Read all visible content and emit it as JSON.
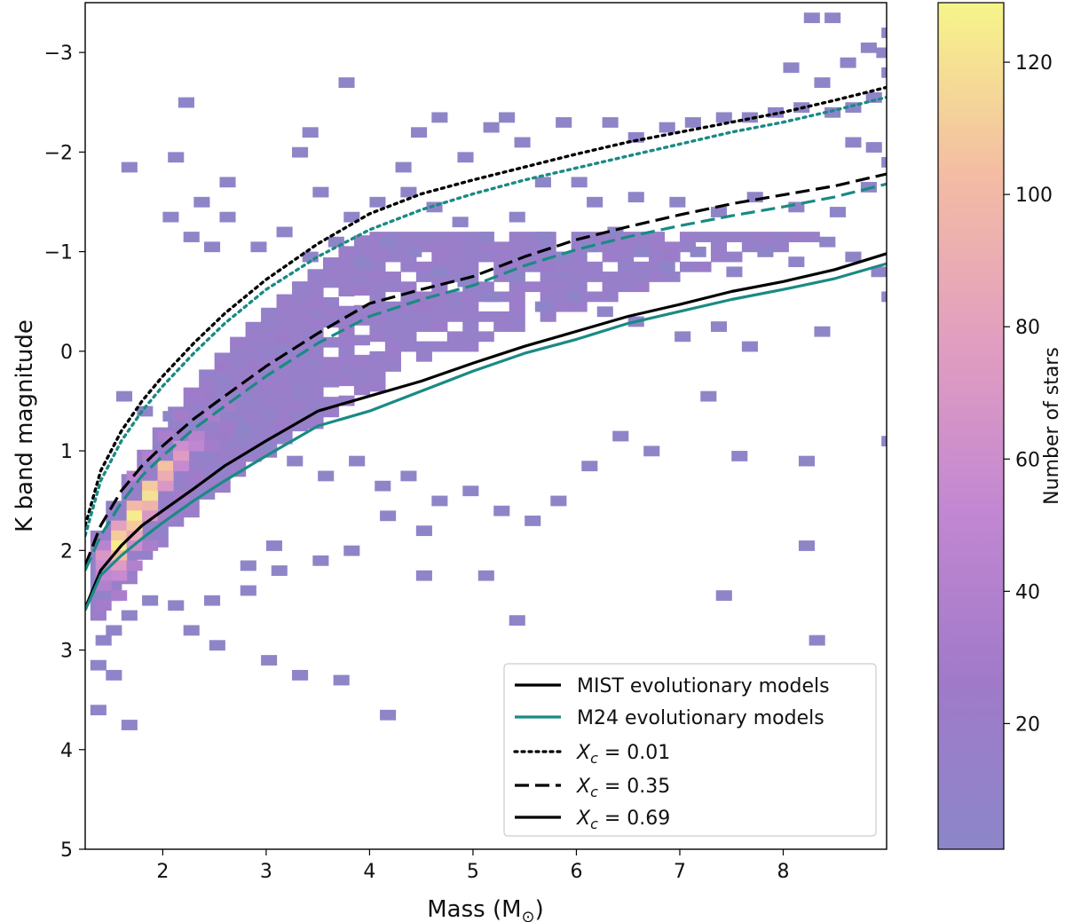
{
  "chart_data": {
    "type": "heatmap",
    "xlabel": "Mass (M",
    "xlabel_sub": "⊙",
    "xlabel_close": ")",
    "ylabel": "K band magnitude",
    "xlim": [
      1.25,
      9.0
    ],
    "ylim": [
      5.0,
      -3.5
    ],
    "y_inverted": true,
    "x_ticks": [
      2,
      3,
      4,
      5,
      6,
      7,
      8
    ],
    "x_tick_labels": [
      "2",
      "3",
      "4",
      "5",
      "6",
      "7",
      "8"
    ],
    "y_ticks": [
      -3,
      -2,
      -1,
      0,
      1,
      2,
      3,
      4,
      5
    ],
    "y_tick_labels": [
      "−3",
      "−2",
      "−1",
      "0",
      "1",
      "2",
      "3",
      "4",
      "5"
    ],
    "grid": false,
    "colorbar": {
      "label": "Number of stars",
      "range": [
        1,
        129
      ],
      "ticks": [
        20,
        40,
        60,
        80,
        100,
        120
      ],
      "tick_labels": [
        "20",
        "40",
        "60",
        "80",
        "100",
        "120"
      ],
      "colors": [
        "#8c86c9",
        "#a07ac9",
        "#c287d2",
        "#e29ec0",
        "#f4bda3",
        "#f6f58a"
      ]
    },
    "heatmap_bins": {
      "x_step": 0.15,
      "y_step": 0.1,
      "low_count_bins": [
        [
          8.2,
          -3.4
        ],
        [
          8.4,
          -3.4
        ],
        [
          8.95,
          -3.25
        ],
        [
          8.9,
          -3.05
        ],
        [
          8.75,
          -3.1
        ],
        [
          8.55,
          -2.95
        ],
        [
          8.0,
          -2.9
        ],
        [
          8.3,
          -2.75
        ],
        [
          8.95,
          -2.85
        ],
        [
          8.8,
          -2.6
        ],
        [
          8.6,
          -2.5
        ],
        [
          8.4,
          -2.45
        ],
        [
          8.1,
          -2.5
        ],
        [
          7.85,
          -2.45
        ],
        [
          7.6,
          -2.4
        ],
        [
          7.35,
          -2.4
        ],
        [
          7.05,
          -2.35
        ],
        [
          6.8,
          -2.3
        ],
        [
          6.5,
          -2.2
        ],
        [
          6.25,
          -2.35
        ],
        [
          5.8,
          -2.35
        ],
        [
          5.25,
          -2.4
        ],
        [
          5.1,
          -2.3
        ],
        [
          4.6,
          -2.4
        ],
        [
          4.4,
          -2.25
        ],
        [
          3.7,
          -2.75
        ],
        [
          3.35,
          -2.25
        ],
        [
          2.15,
          -2.55
        ],
        [
          2.05,
          -2.0
        ],
        [
          1.6,
          -1.9
        ],
        [
          3.25,
          -2.05
        ],
        [
          4.25,
          -1.9
        ],
        [
          4.85,
          -2.0
        ],
        [
          5.4,
          -2.15
        ],
        [
          5.6,
          -1.75
        ],
        [
          5.95,
          -1.75
        ],
        [
          6.1,
          -1.55
        ],
        [
          6.5,
          -1.6
        ],
        [
          6.9,
          -1.55
        ],
        [
          7.3,
          -1.45
        ],
        [
          7.65,
          -1.6
        ],
        [
          8.05,
          -1.5
        ],
        [
          8.45,
          -1.45
        ],
        [
          8.75,
          -1.7
        ],
        [
          8.95,
          -1.95
        ],
        [
          8.8,
          -2.1
        ],
        [
          8.6,
          -2.15
        ],
        [
          2.3,
          -1.55
        ],
        [
          2.55,
          -1.75
        ],
        [
          3.45,
          -1.65
        ],
        [
          3.75,
          -1.4
        ],
        [
          4.0,
          -1.55
        ],
        [
          4.3,
          -1.65
        ],
        [
          4.55,
          -1.5
        ],
        [
          4.8,
          -1.35
        ],
        [
          5.05,
          -1.2
        ],
        [
          5.35,
          -1.4
        ],
        [
          5.6,
          -1.2
        ],
        [
          5.8,
          -1.0
        ],
        [
          6.05,
          -1.1
        ],
        [
          6.3,
          -1.25
        ],
        [
          6.55,
          -1.05
        ],
        [
          6.8,
          -0.9
        ],
        [
          7.1,
          -1.05
        ],
        [
          7.45,
          -0.85
        ],
        [
          7.75,
          -1.05
        ],
        [
          8.05,
          -0.95
        ],
        [
          8.35,
          -1.15
        ],
        [
          8.6,
          -1.0
        ],
        [
          8.85,
          -0.85
        ],
        [
          8.95,
          -0.6
        ],
        [
          2.0,
          -1.4
        ],
        [
          2.2,
          -1.2
        ],
        [
          2.4,
          -1.1
        ],
        [
          2.55,
          -1.4
        ],
        [
          2.85,
          -1.1
        ],
        [
          3.1,
          -1.25
        ],
        [
          3.35,
          -1.0
        ],
        [
          3.6,
          -1.15
        ],
        [
          3.85,
          -0.95
        ],
        [
          4.1,
          -1.15
        ],
        [
          4.35,
          -1.05
        ],
        [
          4.6,
          -0.85
        ],
        [
          4.85,
          -0.75
        ],
        [
          5.1,
          -0.6
        ],
        [
          5.35,
          -0.8
        ],
        [
          5.6,
          -0.5
        ],
        [
          5.9,
          -0.6
        ],
        [
          6.2,
          -0.45
        ],
        [
          6.5,
          -0.35
        ],
        [
          6.95,
          -0.2
        ],
        [
          7.3,
          -0.3
        ],
        [
          7.6,
          -0.1
        ],
        [
          8.3,
          -0.25
        ],
        [
          1.55,
          0.4
        ],
        [
          1.75,
          0.55
        ],
        [
          2.0,
          0.6
        ],
        [
          2.2,
          0.7
        ],
        [
          2.45,
          0.55
        ],
        [
          2.7,
          0.75
        ],
        [
          2.95,
          0.9
        ],
        [
          3.2,
          1.05
        ],
        [
          3.5,
          1.2
        ],
        [
          3.8,
          1.05
        ],
        [
          4.05,
          1.3
        ],
        [
          4.3,
          1.2
        ],
        [
          4.6,
          1.45
        ],
        [
          4.9,
          1.35
        ],
        [
          5.2,
          1.55
        ],
        [
          5.5,
          1.65
        ],
        [
          5.75,
          1.45
        ],
        [
          6.05,
          1.1
        ],
        [
          6.35,
          0.8
        ],
        [
          6.65,
          0.95
        ],
        [
          7.2,
          0.4
        ],
        [
          7.5,
          1.0
        ],
        [
          8.15,
          1.05
        ],
        [
          8.95,
          0.85
        ],
        [
          4.1,
          1.6
        ],
        [
          4.45,
          1.75
        ],
        [
          3.75,
          1.95
        ],
        [
          3.45,
          2.05
        ],
        [
          3.05,
          2.15
        ],
        [
          2.75,
          2.35
        ],
        [
          2.4,
          2.45
        ],
        [
          2.05,
          2.5
        ],
        [
          1.8,
          2.45
        ],
        [
          1.6,
          2.6
        ],
        [
          1.45,
          2.75
        ],
        [
          1.35,
          2.85
        ],
        [
          1.3,
          3.1
        ],
        [
          1.45,
          3.2
        ],
        [
          1.3,
          3.55
        ],
        [
          1.6,
          3.7
        ],
        [
          2.2,
          2.75
        ],
        [
          2.45,
          2.9
        ],
        [
          2.95,
          3.05
        ],
        [
          3.25,
          3.2
        ],
        [
          3.65,
          3.25
        ],
        [
          4.1,
          3.6
        ],
        [
          5.35,
          2.65
        ],
        [
          4.45,
          2.2
        ],
        [
          5.05,
          2.2
        ],
        [
          7.35,
          2.4
        ],
        [
          8.25,
          2.85
        ],
        [
          8.15,
          1.9
        ],
        [
          3.0,
          1.9
        ],
        [
          2.75,
          2.1
        ]
      ]
    },
    "dense_bins": [
      {
        "x": 1.35,
        "y": 1.9,
        "count": 45
      },
      {
        "x": 1.35,
        "y": 2.0,
        "count": 70
      },
      {
        "x": 1.35,
        "y": 2.1,
        "count": 60
      },
      {
        "x": 1.35,
        "y": 2.2,
        "count": 50
      },
      {
        "x": 1.35,
        "y": 2.3,
        "count": 40
      },
      {
        "x": 1.5,
        "y": 1.7,
        "count": 80
      },
      {
        "x": 1.5,
        "y": 1.8,
        "count": 110
      },
      {
        "x": 1.5,
        "y": 1.9,
        "count": 125
      },
      {
        "x": 1.5,
        "y": 2.0,
        "count": 100
      },
      {
        "x": 1.5,
        "y": 2.1,
        "count": 75
      },
      {
        "x": 1.5,
        "y": 2.2,
        "count": 55
      },
      {
        "x": 1.65,
        "y": 1.5,
        "count": 100
      },
      {
        "x": 1.65,
        "y": 1.6,
        "count": 125
      },
      {
        "x": 1.65,
        "y": 1.7,
        "count": 110
      },
      {
        "x": 1.65,
        "y": 1.8,
        "count": 85
      },
      {
        "x": 1.65,
        "y": 1.9,
        "count": 60
      },
      {
        "x": 1.8,
        "y": 1.3,
        "count": 110
      },
      {
        "x": 1.8,
        "y": 1.4,
        "count": 120
      },
      {
        "x": 1.8,
        "y": 1.5,
        "count": 95
      },
      {
        "x": 1.8,
        "y": 1.6,
        "count": 70
      },
      {
        "x": 1.95,
        "y": 1.1,
        "count": 105
      },
      {
        "x": 1.95,
        "y": 1.2,
        "count": 90
      },
      {
        "x": 1.95,
        "y": 1.3,
        "count": 70
      },
      {
        "x": 2.1,
        "y": 0.9,
        "count": 60
      },
      {
        "x": 2.1,
        "y": 1.0,
        "count": 75
      },
      {
        "x": 2.1,
        "y": 1.1,
        "count": 55
      },
      {
        "x": 2.25,
        "y": 0.8,
        "count": 45
      },
      {
        "x": 2.25,
        "y": 0.9,
        "count": 50
      },
      {
        "x": 2.4,
        "y": 0.6,
        "count": 35
      },
      {
        "x": 2.55,
        "y": 0.5,
        "count": 30
      },
      {
        "x": 2.7,
        "y": 0.3,
        "count": 25
      },
      {
        "x": 1.65,
        "y": 1.2,
        "count": 45
      },
      {
        "x": 1.8,
        "y": 1.0,
        "count": 40
      },
      {
        "x": 1.95,
        "y": 0.8,
        "count": 35
      },
      {
        "x": 2.1,
        "y": 0.6,
        "count": 30
      },
      {
        "x": 2.25,
        "y": 0.4,
        "count": 25
      },
      {
        "x": 2.4,
        "y": 0.9,
        "count": 30
      },
      {
        "x": 2.55,
        "y": 0.7,
        "count": 25
      },
      {
        "x": 1.5,
        "y": 2.4,
        "count": 35
      },
      {
        "x": 1.65,
        "y": 2.1,
        "count": 40
      },
      {
        "x": 1.8,
        "y": 1.9,
        "count": 35
      },
      {
        "x": 1.95,
        "y": 1.6,
        "count": 35
      },
      {
        "x": 2.1,
        "y": 1.4,
        "count": 30
      },
      {
        "x": 2.25,
        "y": 1.2,
        "count": 25
      },
      {
        "x": 1.35,
        "y": 2.5,
        "count": 30
      }
    ],
    "series": [
      {
        "name": "MIST evolutionary models",
        "label": "X_c = 0.69",
        "color": "#000000",
        "style": "solid",
        "x": [
          1.25,
          1.4,
          1.6,
          1.8,
          2.0,
          2.3,
          2.6,
          3.0,
          3.5,
          4.0,
          4.5,
          5.0,
          5.5,
          6.0,
          6.5,
          7.0,
          7.5,
          8.0,
          8.5,
          9.0
        ],
        "y": [
          2.58,
          2.2,
          1.95,
          1.75,
          1.6,
          1.38,
          1.15,
          0.9,
          0.6,
          0.45,
          0.3,
          0.12,
          -0.05,
          -0.2,
          -0.35,
          -0.47,
          -0.6,
          -0.7,
          -0.82,
          -0.98
        ]
      },
      {
        "name": "MIST evolutionary models",
        "label": "X_c = 0.35",
        "color": "#000000",
        "style": "dashed",
        "x": [
          1.25,
          1.4,
          1.6,
          1.8,
          2.0,
          2.3,
          2.6,
          3.0,
          3.5,
          4.0,
          4.5,
          5.0,
          5.5,
          6.0,
          6.5,
          7.0,
          7.5,
          8.0,
          8.5,
          9.0
        ],
        "y": [
          2.15,
          1.75,
          1.4,
          1.15,
          0.95,
          0.68,
          0.45,
          0.15,
          -0.18,
          -0.48,
          -0.62,
          -0.75,
          -0.95,
          -1.12,
          -1.25,
          -1.37,
          -1.48,
          -1.57,
          -1.66,
          -1.78
        ]
      },
      {
        "name": "MIST evolutionary models",
        "label": "X_c = 0.01",
        "color": "#000000",
        "style": "dotted",
        "x": [
          1.25,
          1.4,
          1.6,
          1.8,
          2.0,
          2.3,
          2.6,
          3.0,
          3.5,
          4.0,
          4.5,
          5.0,
          5.5,
          6.0,
          6.5,
          7.0,
          7.5,
          8.0,
          8.5,
          9.0
        ],
        "y": [
          1.75,
          1.2,
          0.8,
          0.5,
          0.25,
          -0.08,
          -0.38,
          -0.72,
          -1.08,
          -1.38,
          -1.58,
          -1.72,
          -1.85,
          -1.98,
          -2.1,
          -2.2,
          -2.3,
          -2.4,
          -2.52,
          -2.65
        ]
      },
      {
        "name": "M24 evolutionary models",
        "label": "X_c = 0.69",
        "color": "#1a8a84",
        "style": "solid",
        "x": [
          1.25,
          1.4,
          1.6,
          1.8,
          2.0,
          2.3,
          2.6,
          3.0,
          3.5,
          4.0,
          4.5,
          5.0,
          5.5,
          6.0,
          6.5,
          7.0,
          7.5,
          8.0,
          8.5,
          9.0
        ],
        "y": [
          2.6,
          2.25,
          2.05,
          1.88,
          1.72,
          1.5,
          1.3,
          1.05,
          0.75,
          0.6,
          0.4,
          0.2,
          0.02,
          -0.12,
          -0.28,
          -0.4,
          -0.52,
          -0.62,
          -0.73,
          -0.88
        ]
      },
      {
        "name": "M24 evolutionary models",
        "label": "X_c = 0.35",
        "color": "#1a8a84",
        "style": "dashed",
        "x": [
          1.25,
          1.4,
          1.6,
          1.8,
          2.0,
          2.3,
          2.6,
          3.0,
          3.5,
          4.0,
          4.5,
          5.0,
          5.5,
          6.0,
          6.5,
          7.0,
          7.5,
          8.0,
          8.5,
          9.0
        ],
        "y": [
          2.2,
          1.85,
          1.52,
          1.25,
          1.05,
          0.78,
          0.55,
          0.25,
          -0.08,
          -0.35,
          -0.52,
          -0.66,
          -0.86,
          -1.02,
          -1.15,
          -1.26,
          -1.36,
          -1.45,
          -1.55,
          -1.68
        ]
      },
      {
        "name": "M24 evolutionary models",
        "label": "X_c = 0.01",
        "color": "#1a8a84",
        "style": "dotted",
        "x": [
          1.25,
          1.4,
          1.6,
          1.8,
          2.0,
          2.3,
          2.6,
          3.0,
          3.5,
          4.0,
          4.5,
          5.0,
          5.5,
          6.0,
          6.5,
          7.0,
          7.5,
          8.0,
          8.5,
          9.0
        ],
        "y": [
          1.85,
          1.3,
          0.9,
          0.6,
          0.35,
          0.02,
          -0.28,
          -0.62,
          -0.95,
          -1.22,
          -1.42,
          -1.58,
          -1.72,
          -1.84,
          -1.96,
          -2.08,
          -2.2,
          -2.3,
          -2.42,
          -2.55
        ]
      }
    ],
    "legend": {
      "placement": "lower-right",
      "entries": [
        {
          "label": "MIST evolutionary models",
          "color": "#000000",
          "style": "solid",
          "math": false
        },
        {
          "label": "M24 evolutionary models",
          "color": "#1a8a84",
          "style": "solid",
          "math": false
        },
        {
          "label": "= 0.01",
          "prefix": "X",
          "sub": "c",
          "color": "#000000",
          "style": "dotted",
          "math": true
        },
        {
          "label": "= 0.35",
          "prefix": "X",
          "sub": "c",
          "color": "#000000",
          "style": "dashed",
          "math": true
        },
        {
          "label": "= 0.69",
          "prefix": "X",
          "sub": "c",
          "color": "#000000",
          "style": "solid",
          "math": true
        }
      ]
    }
  }
}
